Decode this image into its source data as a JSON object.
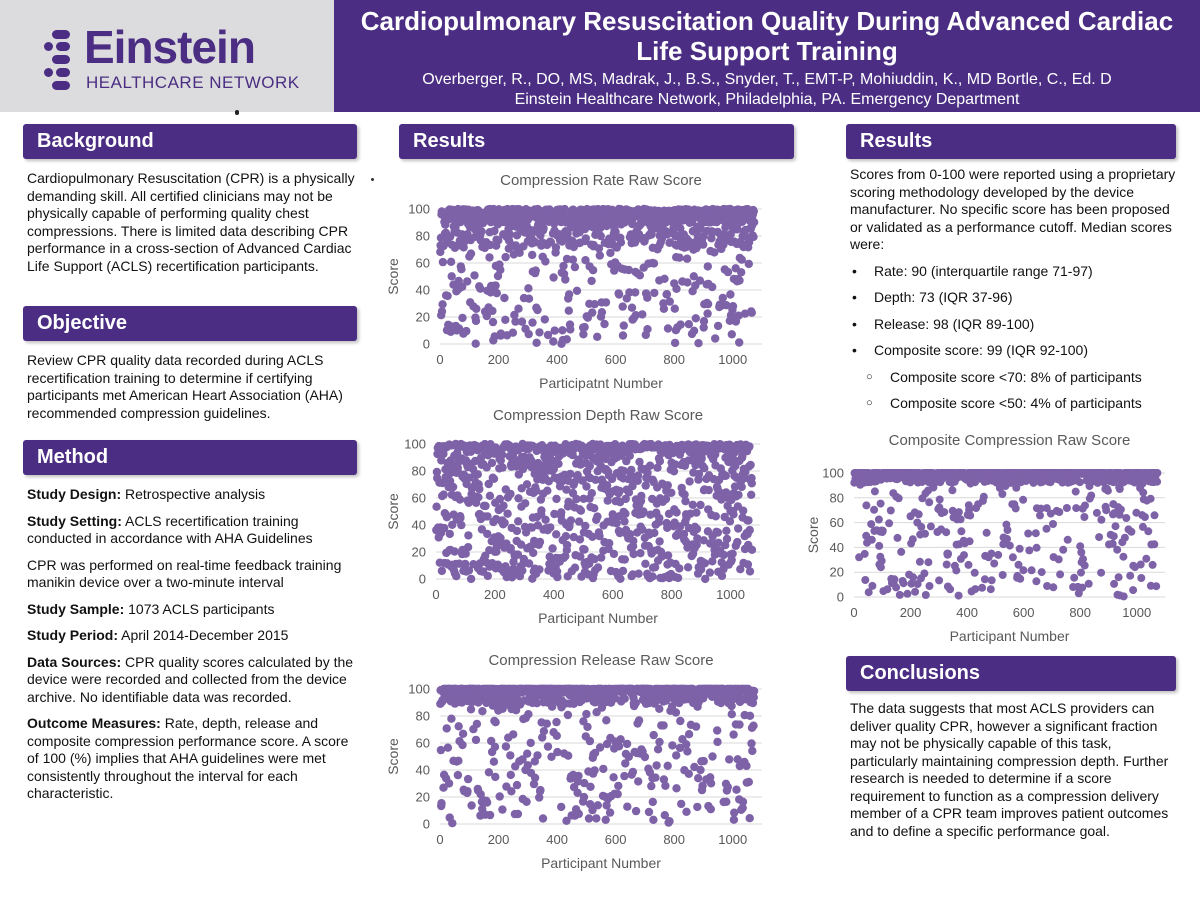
{
  "header": {
    "logo_name": "Einstein",
    "logo_subtitle": "HEALTHCARE NETWORK",
    "title_line1": "Cardiopulmonary Resuscitation Quality During Advanced Cardiac",
    "title_line2": "Life Support Training",
    "authors": "Overberger, R., DO, MS, Madrak, J., B.S., Snyder, T., EMT-P, Mohiuddin, K., MD Bortle, C., Ed. D",
    "affiliation": "Einstein Healthcare Network, Philadelphia, PA. Emergency Department",
    "brand_color": "#4b2e83"
  },
  "background": {
    "heading": "Background",
    "text": "Cardiopulmonary Resuscitation (CPR) is a physically demanding skill. All certified clinicians may not be physically capable of performing quality chest compressions. There is limited data describing CPR performance in a cross-section of Advanced Cardiac Life Support (ACLS) recertification participants."
  },
  "objective": {
    "heading": "Objective",
    "text": "Review CPR quality data recorded during ACLS recertification training to determine if certifying participants met American Heart Association (AHA) recommended compression guidelines."
  },
  "method": {
    "heading": "Method",
    "design_label": "Study Design:",
    "design_value": " Retrospective analysis",
    "setting_label": "Study Setting:",
    "setting_value": " ACLS recertification training conducted in accordance with AHA Guidelines",
    "cpr_text": "CPR was performed on real-time feedback training manikin device over a two-minute interval",
    "sample_label": "Study Sample:",
    "sample_value": " 1073 ACLS participants",
    "period_label": "Study Period:",
    "period_value": " April 2014-December 2015",
    "sources_label": "Data Sources:",
    "sources_value": " CPR quality scores calculated by the device were recorded and collected from the device archive. No identifiable data was recorded.",
    "outcome_label": "Outcome Measures:",
    "outcome_value": " Rate, depth, release and composite compression performance score. A score of 100 (%) implies that AHA guidelines were met consistently throughout the interval for each characteristic."
  },
  "results_middle": {
    "heading": "Results"
  },
  "results_right": {
    "heading": "Results",
    "intro": "Scores from 0-100 were reported using a proprietary scoring methodology developed by the device manufacturer. No specific score has been proposed or validated as a performance cutoff. Median scores were:",
    "bullets": [
      "Rate: 90 (interquartile range 71-97)",
      "Depth: 73 (IQR 37-96)",
      "Release: 98 (IQR 89-100)",
      "Composite score: 99 (IQR 92-100)"
    ],
    "sub_bullets": [
      "Composite score <70: 8% of participants",
      "Composite score <50: 4% of participants"
    ]
  },
  "conclusions": {
    "heading": "Conclusions",
    "text": "The data suggests that most ACLS providers can deliver quality CPR, however a significant fraction may not be physically capable of this task, particularly maintaining compression depth. Further research is needed to determine if a score requirement to function as a compression delivery member of a CPR team improves patient outcomes and to define a specific performance goal."
  },
  "chart_data": [
    {
      "id": "rate",
      "type": "scatter",
      "title": "Compression Rate Raw Score",
      "xlabel": "Participatnt Number",
      "ylabel": "Score",
      "xlim": [
        0,
        1100
      ],
      "ylim": [
        0,
        100
      ],
      "xticks": [
        0,
        200,
        400,
        600,
        800,
        1000
      ],
      "yticks": [
        0,
        20,
        40,
        60,
        80,
        100
      ],
      "n_points": 1073,
      "marker_color": "#7e62a8",
      "distribution": {
        "median": 90,
        "q1": 71,
        "q3": 97
      }
    },
    {
      "id": "depth",
      "type": "scatter",
      "title": "Compression Depth Raw Score",
      "xlabel": "Participant Number",
      "ylabel": "Score",
      "xlim": [
        0,
        1100
      ],
      "ylim": [
        0,
        100
      ],
      "xticks": [
        0,
        200,
        400,
        600,
        800,
        1000
      ],
      "yticks": [
        0,
        20,
        40,
        60,
        80,
        100
      ],
      "n_points": 1073,
      "marker_color": "#7e62a8",
      "distribution": {
        "median": 73,
        "q1": 37,
        "q3": 96
      }
    },
    {
      "id": "release",
      "type": "scatter",
      "title": "Compression Release Raw Score",
      "xlabel": "Participant Number",
      "ylabel": "Score",
      "xlim": [
        0,
        1100
      ],
      "ylim": [
        0,
        100
      ],
      "xticks": [
        0,
        200,
        400,
        600,
        800,
        1000
      ],
      "yticks": [
        0,
        20,
        40,
        60,
        80,
        100
      ],
      "n_points": 1073,
      "marker_color": "#7e62a8",
      "distribution": {
        "median": 98,
        "q1": 89,
        "q3": 100
      }
    },
    {
      "id": "composite",
      "type": "scatter",
      "title": "Composite Compression Raw Score",
      "xlabel": "Participant Number",
      "ylabel": "Score",
      "xlim": [
        0,
        1100
      ],
      "ylim": [
        0,
        100
      ],
      "xticks": [
        0,
        200,
        400,
        600,
        800,
        1000
      ],
      "yticks": [
        0,
        20,
        40,
        60,
        80,
        100
      ],
      "n_points": 1073,
      "marker_color": "#7e62a8",
      "distribution": {
        "median": 99,
        "q1": 92,
        "q3": 100
      }
    }
  ]
}
